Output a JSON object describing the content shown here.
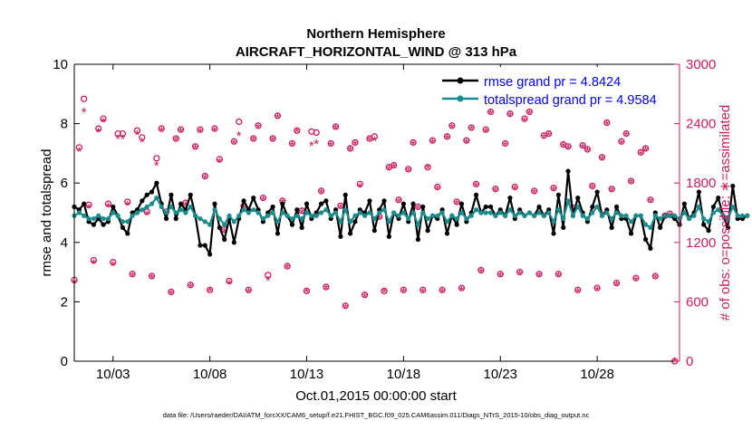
{
  "chart_data": {
    "type": "line",
    "title": [
      "Northern Hemisphere",
      "AIRCRAFT_HORIZONTAL_WIND @ 313 hPa"
    ],
    "xlabel": "Oct.01,2015 00:00:00 start",
    "ylabel_left": "rmse and totalspread",
    "ylabel_right": "# of obs: o=possible; ∗=assimilated",
    "footnote": "data file: /Users/raeder/DAI/ATM_forcXX/CAM6_setup/f.e21.FHIST_BGC.f09_025.CAM6assim.011/Diags_NTrS_2015-10/obs_diag_output.nc",
    "x_tick_labels": [
      "10/03",
      "10/08",
      "10/13",
      "10/18",
      "10/23",
      "10/28"
    ],
    "x_tick_days": [
      3,
      8,
      13,
      18,
      23,
      28
    ],
    "xlim_days": [
      1,
      32.25
    ],
    "ylim_left": [
      0,
      10
    ],
    "y_ticks_left": [
      0,
      2,
      4,
      6,
      8,
      10
    ],
    "ylim_right": [
      0,
      3000
    ],
    "y_ticks_right": [
      0,
      600,
      1200,
      1800,
      2400,
      3000
    ],
    "grid": false,
    "legend_position": "top-right",
    "colors": {
      "rmse": "#000000",
      "spread": "#1a8c8c",
      "obs": "#d01a5e",
      "legend_text": "#0000ee"
    },
    "series": [
      {
        "name": "rmse grand pr = 4.8424",
        "values": [
          5.2,
          5.1,
          5.3,
          4.7,
          4.6,
          4.8,
          4.6,
          4.7,
          5.2,
          4.9,
          4.5,
          4.3,
          5.0,
          5.1,
          5.4,
          5.6,
          5.7,
          6.0,
          5.3,
          4.8,
          5.6,
          4.8,
          5.3,
          5.1,
          5.6,
          4.9,
          3.9,
          3.9,
          3.6,
          5.3,
          4.5,
          4.1,
          4.8,
          4.0,
          4.8,
          5.4,
          5.1,
          5.5,
          5.1,
          4.7,
          5.0,
          5.2,
          4.3,
          5.3,
          4.9,
          4.6,
          5.1,
          4.5,
          5.3,
          4.8,
          5.0,
          5.3,
          5.4,
          4.8,
          5.1,
          4.2,
          5.6,
          4.3,
          4.7,
          5.1,
          5.0,
          5.4,
          4.4,
          5.1,
          5.4,
          4.2,
          5.0,
          4.8,
          5.3,
          4.7,
          5.3,
          4.1,
          5.2,
          4.4,
          4.9,
          4.8,
          5.1,
          4.3,
          4.9,
          4.6,
          5.3,
          4.7,
          5.0,
          5.6,
          5.0,
          5.2,
          5.2,
          4.9,
          5.1,
          4.9,
          5.5,
          4.8,
          5.1,
          4.9,
          5.0,
          4.9,
          5.2,
          4.9,
          5.1,
          4.3,
          5.6,
          4.5,
          6.4,
          4.9,
          5.5,
          5.0,
          4.7,
          5.2,
          5.7,
          4.9,
          5.1,
          4.5,
          5.2,
          4.8,
          4.8,
          4.3,
          4.9,
          4.9,
          4.1,
          3.8,
          5.0,
          4.5,
          4.9,
          4.9,
          4.8,
          4.6,
          5.3,
          4.8,
          5.0,
          5.7,
          4.6,
          4.4,
          5.2,
          5.5,
          4.9,
          4.5,
          5.9,
          4.8,
          4.8,
          4.9
        ],
        "color": "#000000"
      },
      {
        "name": "totalspread grand pr = 4.9584",
        "values": [
          4.9,
          5.0,
          4.9,
          4.8,
          4.8,
          4.9,
          4.8,
          4.8,
          5.0,
          4.9,
          4.7,
          4.7,
          4.9,
          5.0,
          5.1,
          5.2,
          5.3,
          5.5,
          5.2,
          5.0,
          5.2,
          5.0,
          5.1,
          5.0,
          5.2,
          4.9,
          4.8,
          4.7,
          4.6,
          5.1,
          4.8,
          4.6,
          4.9,
          4.7,
          4.9,
          5.1,
          5.0,
          5.1,
          5.0,
          4.8,
          4.9,
          5.0,
          4.7,
          5.0,
          4.9,
          4.8,
          4.9,
          4.8,
          5.0,
          4.9,
          4.9,
          5.0,
          5.1,
          4.9,
          5.0,
          4.7,
          5.1,
          4.7,
          4.9,
          5.0,
          4.9,
          5.0,
          4.8,
          5.0,
          5.1,
          4.7,
          5.0,
          4.9,
          5.0,
          4.8,
          5.0,
          4.6,
          5.0,
          4.8,
          4.9,
          4.9,
          5.0,
          4.7,
          4.9,
          4.8,
          5.0,
          4.8,
          4.9,
          5.1,
          5.0,
          5.0,
          5.0,
          4.9,
          5.0,
          4.9,
          5.1,
          4.9,
          5.0,
          4.9,
          5.0,
          4.9,
          5.0,
          4.9,
          5.0,
          4.7,
          5.1,
          4.8,
          5.4,
          4.9,
          5.2,
          4.9,
          4.8,
          5.0,
          5.2,
          4.9,
          5.0,
          4.8,
          5.0,
          4.9,
          4.9,
          4.7,
          4.9,
          4.9,
          4.6,
          4.5,
          4.9,
          4.8,
          4.9,
          4.9,
          4.9,
          4.8,
          5.0,
          4.8,
          4.9,
          5.2,
          4.8,
          4.7,
          5.0,
          5.1,
          4.9,
          4.8,
          5.2,
          4.9,
          4.9,
          4.9
        ],
        "color": "#1a8c8c"
      }
    ],
    "obs_counts": [
      {
        "day": 1.0,
        "possible": 820,
        "assimilated": 790
      },
      {
        "day": 1.25,
        "possible": 2160,
        "assimilated": 2120
      },
      {
        "day": 1.5,
        "possible": 2650,
        "assimilated": 2520
      },
      {
        "day": 1.75,
        "possible": 1580,
        "assimilated": 1550
      },
      {
        "day": 2.0,
        "possible": 1020,
        "assimilated": 990
      },
      {
        "day": 2.25,
        "possible": 2350,
        "assimilated": 2320
      },
      {
        "day": 2.5,
        "possible": 2450,
        "assimilated": 2420
      },
      {
        "day": 2.75,
        "possible": 1590,
        "assimilated": 1560
      },
      {
        "day": 3.0,
        "possible": 1000,
        "assimilated": 970
      },
      {
        "day": 3.25,
        "possible": 2300,
        "assimilated": 2250
      },
      {
        "day": 3.5,
        "possible": 2300,
        "assimilated": 2250
      },
      {
        "day": 3.75,
        "possible": 1610,
        "assimilated": 1580
      },
      {
        "day": 4.0,
        "possible": 880,
        "assimilated": 860
      },
      {
        "day": 4.25,
        "possible": 2330,
        "assimilated": 2290
      },
      {
        "day": 4.5,
        "possible": 2260,
        "assimilated": 2220
      },
      {
        "day": 4.75,
        "possible": 1510,
        "assimilated": 1480
      },
      {
        "day": 5.0,
        "possible": 860,
        "assimilated": 840
      },
      {
        "day": 5.25,
        "possible": 2050,
        "assimilated": 1980
      },
      {
        "day": 5.5,
        "possible": 2350,
        "assimilated": 2330
      },
      {
        "day": 5.75,
        "possible": 1510,
        "assimilated": 1480
      },
      {
        "day": 6.0,
        "possible": 700,
        "assimilated": 680
      },
      {
        "day": 6.25,
        "possible": 2250,
        "assimilated": 2230
      },
      {
        "day": 6.5,
        "possible": 2340,
        "assimilated": 2320
      },
      {
        "day": 6.75,
        "possible": 1600,
        "assimilated": 1580
      },
      {
        "day": 7.0,
        "possible": 770,
        "assimilated": 750
      },
      {
        "day": 7.25,
        "possible": 2170,
        "assimilated": 2150
      },
      {
        "day": 7.5,
        "possible": 2340,
        "assimilated": 2320
      },
      {
        "day": 7.75,
        "possible": 1870,
        "assimilated": 1850
      },
      {
        "day": 8.0,
        "possible": 720,
        "assimilated": 710
      },
      {
        "day": 8.25,
        "possible": 2350,
        "assimilated": 2330
      },
      {
        "day": 8.5,
        "possible": 2040,
        "assimilated": 2010
      },
      {
        "day": 8.75,
        "possible": 1330,
        "assimilated": 1310
      },
      {
        "day": 9.0,
        "possible": 810,
        "assimilated": 780
      },
      {
        "day": 9.25,
        "possible": 2220,
        "assimilated": 2200
      },
      {
        "day": 9.5,
        "possible": 2420,
        "assimilated": 2280
      },
      {
        "day": 9.75,
        "possible": 1570,
        "assimilated": 1550
      },
      {
        "day": 10.0,
        "possible": 720,
        "assimilated": 700
      },
      {
        "day": 10.25,
        "possible": 2250,
        "assimilated": 2230
      },
      {
        "day": 10.5,
        "possible": 2380,
        "assimilated": 2360
      },
      {
        "day": 10.75,
        "possible": 1650,
        "assimilated": 1630
      },
      {
        "day": 11.0,
        "possible": 870,
        "assimilated": 820
      },
      {
        "day": 11.25,
        "possible": 2250,
        "assimilated": 2230
      },
      {
        "day": 11.5,
        "possible": 2480,
        "assimilated": 2460
      },
      {
        "day": 11.75,
        "possible": 1620,
        "assimilated": 1600
      },
      {
        "day": 12.0,
        "possible": 960,
        "assimilated": 940
      },
      {
        "day": 12.25,
        "possible": 2200,
        "assimilated": 2180
      },
      {
        "day": 12.5,
        "possible": 2330,
        "assimilated": 2320
      },
      {
        "day": 12.75,
        "possible": 1520,
        "assimilated": 1500
      },
      {
        "day": 13.0,
        "possible": 710,
        "assimilated": 700
      },
      {
        "day": 13.25,
        "possible": 2320,
        "assimilated": 2180
      },
      {
        "day": 13.5,
        "possible": 2310,
        "assimilated": 2200
      },
      {
        "day": 13.75,
        "possible": 1720,
        "assimilated": 1700
      },
      {
        "day": 14.0,
        "possible": 750,
        "assimilated": 730
      },
      {
        "day": 14.25,
        "possible": 2200,
        "assimilated": 2180
      },
      {
        "day": 14.5,
        "possible": 2370,
        "assimilated": 2350
      },
      {
        "day": 14.75,
        "possible": 1570,
        "assimilated": 1550
      },
      {
        "day": 15.0,
        "possible": 560,
        "assimilated": 540
      },
      {
        "day": 15.25,
        "possible": 2150,
        "assimilated": 2130
      },
      {
        "day": 15.5,
        "possible": 2210,
        "assimilated": 2190
      },
      {
        "day": 15.75,
        "possible": 1790,
        "assimilated": 1760
      },
      {
        "day": 16.0,
        "possible": 670,
        "assimilated": 650
      },
      {
        "day": 16.25,
        "possible": 2250,
        "assimilated": 2230
      },
      {
        "day": 16.5,
        "possible": 2270,
        "assimilated": 2230
      },
      {
        "day": 16.75,
        "possible": 1460,
        "assimilated": 1440
      },
      {
        "day": 17.0,
        "possible": 710,
        "assimilated": 700
      },
      {
        "day": 17.25,
        "possible": 1960,
        "assimilated": 1940
      },
      {
        "day": 17.5,
        "possible": 1980,
        "assimilated": 1960
      },
      {
        "day": 17.75,
        "possible": 1630,
        "assimilated": 1610
      },
      {
        "day": 18.0,
        "possible": 720,
        "assimilated": 700
      },
      {
        "day": 18.25,
        "possible": 1940,
        "assimilated": 1920
      },
      {
        "day": 18.5,
        "possible": 2210,
        "assimilated": 2190
      },
      {
        "day": 18.75,
        "possible": 1560,
        "assimilated": 1540
      },
      {
        "day": 19.0,
        "possible": 720,
        "assimilated": 700
      },
      {
        "day": 19.25,
        "possible": 1960,
        "assimilated": 1950
      },
      {
        "day": 19.5,
        "possible": 2230,
        "assimilated": 2210
      },
      {
        "day": 19.75,
        "possible": 1760,
        "assimilated": 1740
      },
      {
        "day": 20.0,
        "possible": 720,
        "assimilated": 700
      },
      {
        "day": 20.25,
        "possible": 2270,
        "assimilated": 2250
      },
      {
        "day": 20.5,
        "possible": 2380,
        "assimilated": 2360
      },
      {
        "day": 20.75,
        "possible": 1610,
        "assimilated": 1590
      },
      {
        "day": 21.0,
        "possible": 740,
        "assimilated": 720
      },
      {
        "day": 21.25,
        "possible": 2230,
        "assimilated": 2210
      },
      {
        "day": 21.5,
        "possible": 2360,
        "assimilated": 2340
      },
      {
        "day": 21.75,
        "possible": 1790,
        "assimilated": 1770
      },
      {
        "day": 22.0,
        "possible": 920,
        "assimilated": 900
      },
      {
        "day": 22.25,
        "possible": 2340,
        "assimilated": 2320
      },
      {
        "day": 22.5,
        "possible": 2520,
        "assimilated": 2500
      },
      {
        "day": 22.75,
        "possible": 1740,
        "assimilated": 1720
      },
      {
        "day": 23.0,
        "possible": 880,
        "assimilated": 860
      },
      {
        "day": 23.25,
        "possible": 2200,
        "assimilated": 2180
      },
      {
        "day": 23.5,
        "possible": 2500,
        "assimilated": 2480
      },
      {
        "day": 23.75,
        "possible": 1760,
        "assimilated": 1740
      },
      {
        "day": 24.0,
        "possible": 900,
        "assimilated": 880
      },
      {
        "day": 24.25,
        "possible": 2450,
        "assimilated": 2430
      },
      {
        "day": 24.5,
        "possible": 2520,
        "assimilated": 2500
      },
      {
        "day": 24.75,
        "possible": 1720,
        "assimilated": 1700
      },
      {
        "day": 25.0,
        "possible": 880,
        "assimilated": 860
      },
      {
        "day": 25.25,
        "possible": 2280,
        "assimilated": 2260
      },
      {
        "day": 25.5,
        "possible": 2300,
        "assimilated": 2280
      },
      {
        "day": 25.75,
        "possible": 1750,
        "assimilated": 1730
      },
      {
        "day": 26.0,
        "possible": 880,
        "assimilated": 860
      },
      {
        "day": 26.25,
        "possible": 2190,
        "assimilated": 2170
      },
      {
        "day": 26.5,
        "possible": 2170,
        "assimilated": 2150
      },
      {
        "day": 26.75,
        "possible": 1550,
        "assimilated": 1530
      },
      {
        "day": 27.0,
        "possible": 720,
        "assimilated": 700
      },
      {
        "day": 27.25,
        "possible": 2180,
        "assimilated": 2160
      },
      {
        "day": 27.5,
        "possible": 2140,
        "assimilated": 2120
      },
      {
        "day": 27.75,
        "possible": 1770,
        "assimilated": 1750
      },
      {
        "day": 28.0,
        "possible": 740,
        "assimilated": 720
      },
      {
        "day": 28.25,
        "possible": 2060,
        "assimilated": 2040
      },
      {
        "day": 28.5,
        "possible": 2410,
        "assimilated": 2390
      },
      {
        "day": 28.75,
        "possible": 1740,
        "assimilated": 1720
      },
      {
        "day": 29.0,
        "possible": 790,
        "assimilated": 770
      },
      {
        "day": 29.25,
        "possible": 2220,
        "assimilated": 2200
      },
      {
        "day": 29.5,
        "possible": 2300,
        "assimilated": 2280
      },
      {
        "day": 29.75,
        "possible": 1820,
        "assimilated": 1800
      },
      {
        "day": 30.0,
        "possible": 840,
        "assimilated": 820
      },
      {
        "day": 30.25,
        "possible": 2110,
        "assimilated": 2090
      },
      {
        "day": 30.5,
        "possible": 2150,
        "assimilated": 2130
      },
      {
        "day": 30.75,
        "possible": 1630,
        "assimilated": 1610
      },
      {
        "day": 31.0,
        "possible": 860,
        "assimilated": 840
      },
      {
        "day": 31.25,
        "possible": 2620,
        "assimilated": 2600
      },
      {
        "day": 31.5,
        "possible": 1470,
        "assimilated": 1450
      },
      {
        "day": 31.75,
        "possible": 1490,
        "assimilated": 1470
      },
      {
        "day": 32.0,
        "possible": 0,
        "assimilated": 0
      }
    ]
  }
}
